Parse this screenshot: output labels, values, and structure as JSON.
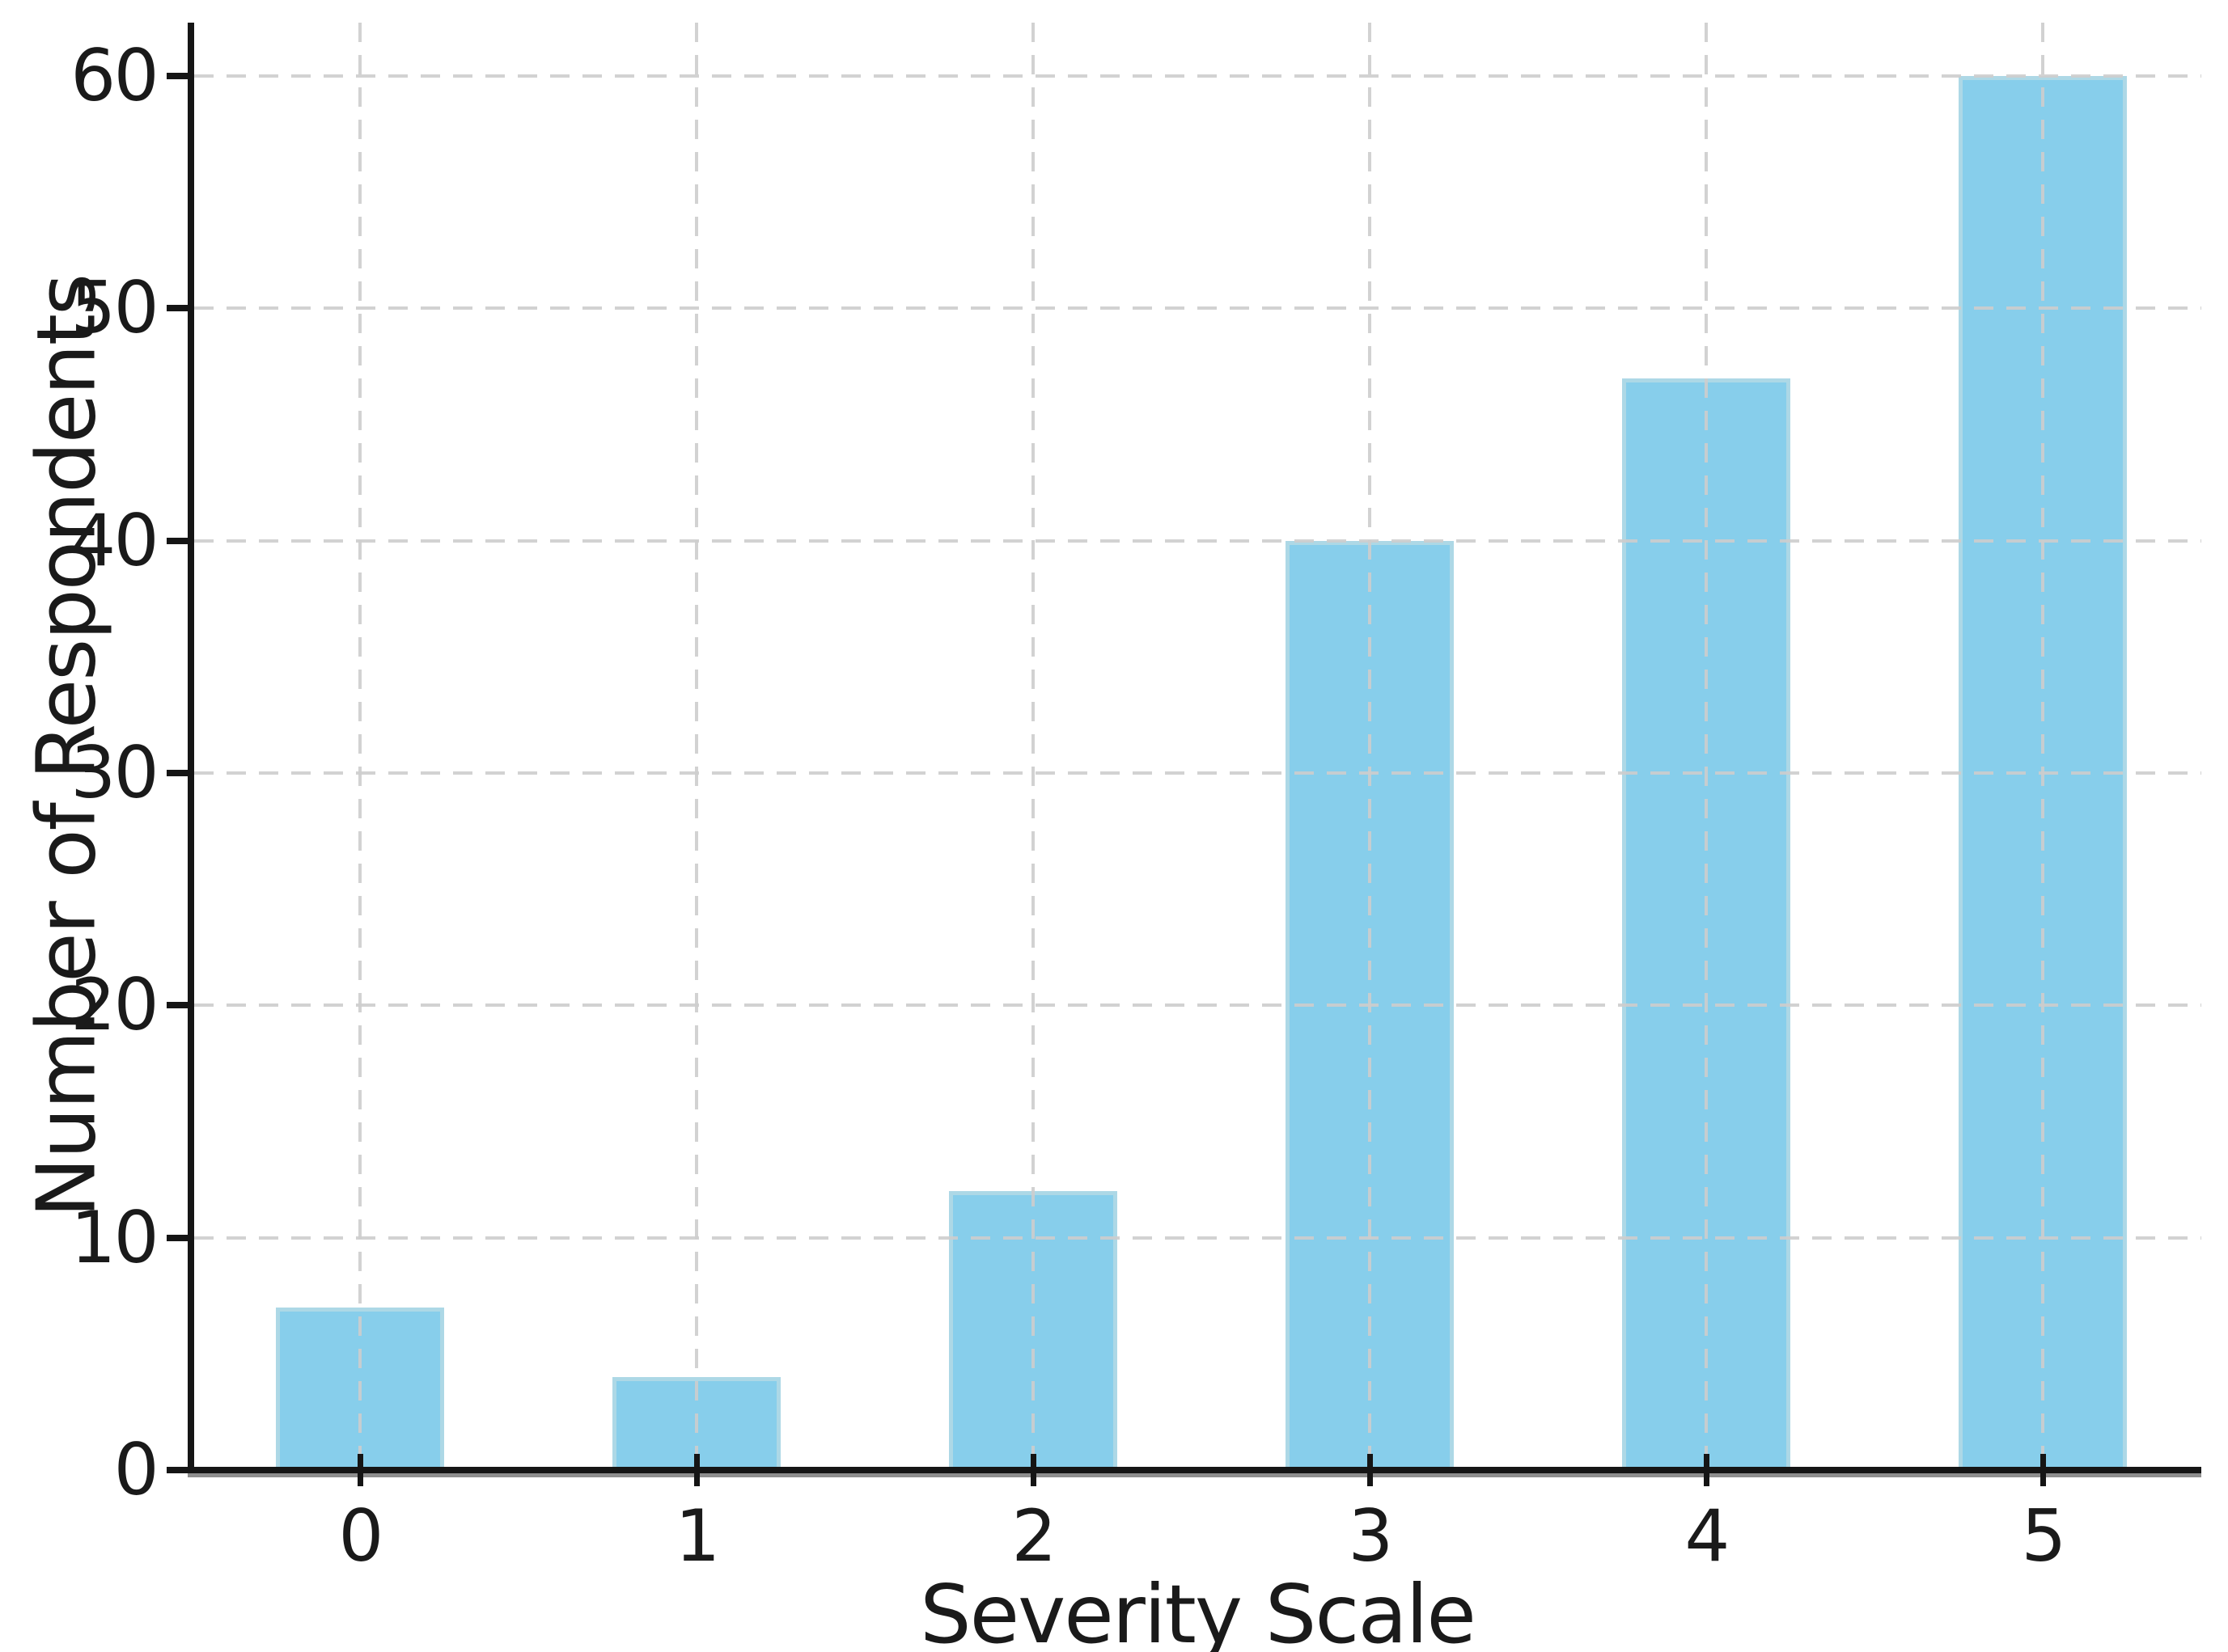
{
  "chart_data": {
    "type": "bar",
    "categories": [
      "0",
      "1",
      "2",
      "3",
      "4",
      "5"
    ],
    "values": [
      7,
      4,
      12,
      40,
      47,
      60
    ],
    "title": "",
    "xlabel": "Severity Scale",
    "ylabel": "Number of Respondents",
    "yticks": [
      0,
      10,
      20,
      30,
      40,
      50,
      60
    ],
    "xlim": [
      -0.493,
      5.471
    ],
    "ylim": [
      0,
      62.3
    ],
    "bar_width": 0.5,
    "grid": true,
    "grid_style": "dashed",
    "grid_axis": "both",
    "legend": null,
    "colors": {
      "bar_fill": "#87CEEB",
      "bar_edge": "#ADD8E6",
      "grid": "#cdcdcd",
      "axis": "#151515",
      "text": "#1a1a1a",
      "background": "#ffffff"
    }
  }
}
